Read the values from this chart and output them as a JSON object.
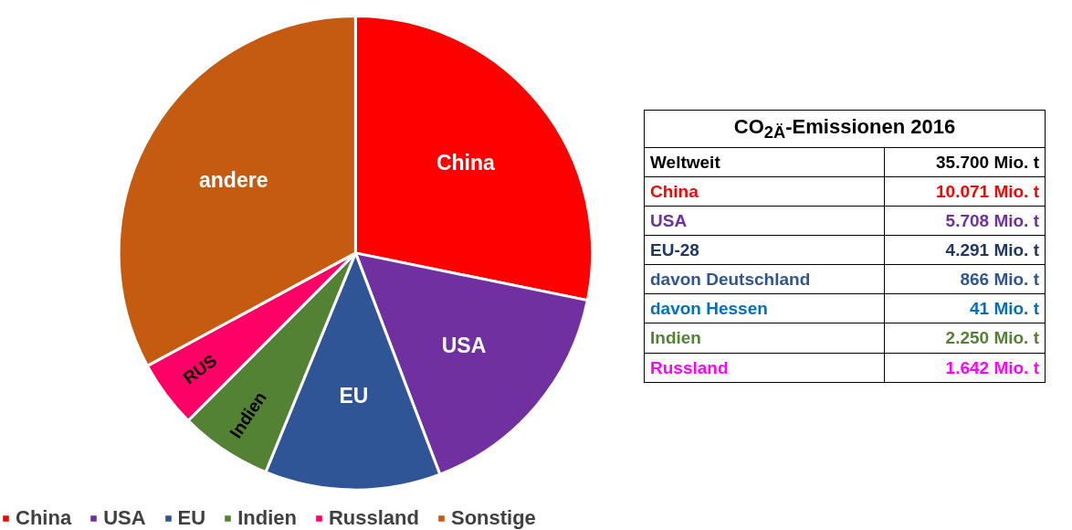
{
  "chart_data": [
    {
      "type": "pie",
      "categories": [
        "China",
        "USA",
        "EU",
        "Indien",
        "Russland",
        "Sonstige"
      ],
      "values": [
        28.2,
        16.0,
        12.0,
        6.3,
        4.6,
        32.9
      ],
      "colors": [
        "#ff0000",
        "#7030a0",
        "#2f5597",
        "#548235",
        "#ff0066",
        "#c55a11"
      ],
      "annotations": [
        "China",
        "USA",
        "EU",
        "Indien",
        "RUS",
        "andere"
      ],
      "legend": "bottom"
    },
    {
      "type": "other",
      "title": "CO$_{2Ä}$-Emissionen 2016",
      "categories": [
        "Weltweit",
        "China",
        "USA",
        "EU-28",
        "davon Deutschland",
        "davon Hessen",
        "Indien",
        "Russland"
      ],
      "value_labels": [
        "35.700 Mio. t",
        "10.071 Mio. t",
        "5.708 Mio. t",
        "4.291 Mio. t",
        "866 Mio. t",
        "41 Mio. t",
        "2.250 Mio. t",
        "1.642 Mio. t"
      ],
      "colors": [
        "#000000",
        "#ff0000",
        "#7030a0",
        "#203864",
        "#2f5597",
        "#0070c0",
        "#548235",
        "#ff00ff"
      ]
    }
  ]
}
